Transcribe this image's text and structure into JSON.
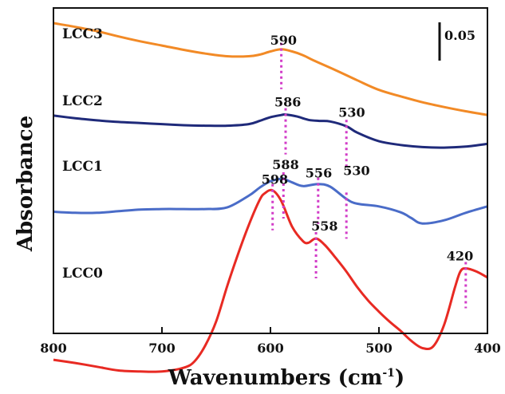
{
  "chart_data": {
    "type": "line",
    "xlabel": "Wavenumbers (cm",
    "xlabel_sup": "-1",
    "xlabel_close": ")",
    "ylabel": "Absorbance",
    "xlim": [
      800,
      400
    ],
    "x_reversed": true,
    "x_ticks": [
      800,
      700,
      600,
      500,
      400
    ],
    "scale_bar": "0.05",
    "scale_bar_value": 0.05,
    "colors": {
      "LCC3": "#f28a26",
      "LCC2": "#1f2a7a",
      "LCC1": "#4a6cc8",
      "LCC0": "#e82a23",
      "markers": "#d23cc8"
    },
    "series": [
      {
        "name": "LCC3",
        "x": [
          800,
          780,
          760,
          740,
          720,
          700,
          680,
          660,
          640,
          620,
          610,
          600,
          590,
          580,
          570,
          560,
          540,
          520,
          500,
          480,
          460,
          440,
          420,
          400
        ],
        "y": [
          0.203,
          0.196,
          0.188,
          0.178,
          0.169,
          0.161,
          0.153,
          0.146,
          0.141,
          0.141,
          0.144,
          0.15,
          0.154,
          0.15,
          0.143,
          0.133,
          0.115,
          0.096,
          0.078,
          0.066,
          0.055,
          0.046,
          0.038,
          0.031
        ]
      },
      {
        "name": "LCC2",
        "x": [
          800,
          780,
          760,
          740,
          720,
          700,
          680,
          660,
          640,
          620,
          610,
          600,
          590,
          586,
          575,
          565,
          555,
          545,
          530,
          520,
          500,
          480,
          460,
          440,
          420,
          400
        ],
        "y": [
          0.03,
          0.025,
          0.021,
          0.018,
          0.016,
          0.014,
          0.012,
          0.011,
          0.011,
          0.014,
          0.02,
          0.027,
          0.031,
          0.032,
          0.028,
          0.022,
          0.02,
          0.019,
          0.01,
          -0.002,
          -0.018,
          -0.025,
          -0.029,
          -0.03,
          -0.028,
          -0.023
        ]
      },
      {
        "name": "LCC1",
        "x": [
          800,
          780,
          760,
          740,
          720,
          700,
          680,
          660,
          640,
          620,
          610,
          600,
          590,
          588,
          580,
          570,
          556,
          545,
          530,
          520,
          500,
          480,
          470,
          460,
          440,
          420,
          400
        ],
        "y": [
          -0.15,
          -0.152,
          -0.152,
          -0.149,
          -0.146,
          -0.145,
          -0.145,
          -0.145,
          -0.142,
          -0.12,
          -0.105,
          -0.093,
          -0.088,
          -0.088,
          -0.095,
          -0.102,
          -0.098,
          -0.103,
          -0.126,
          -0.135,
          -0.14,
          -0.151,
          -0.162,
          -0.172,
          -0.166,
          -0.152,
          -0.14
        ]
      },
      {
        "name": "LCC0",
        "x": [
          800,
          780,
          760,
          740,
          720,
          700,
          680,
          670,
          660,
          650,
          640,
          630,
          620,
          610,
          605,
          598,
          590,
          580,
          570,
          565,
          558,
          550,
          540,
          530,
          520,
          510,
          500,
          490,
          480,
          470,
          460,
          450,
          440,
          430,
          425,
          420,
          410,
          400
        ],
        "y": [
          -0.427,
          -0.433,
          -0.44,
          -0.447,
          -0.449,
          -0.449,
          -0.442,
          -0.43,
          -0.4,
          -0.355,
          -0.29,
          -0.23,
          -0.175,
          -0.128,
          -0.115,
          -0.11,
          -0.13,
          -0.178,
          -0.205,
          -0.208,
          -0.2,
          -0.212,
          -0.236,
          -0.262,
          -0.291,
          -0.316,
          -0.337,
          -0.356,
          -0.373,
          -0.392,
          -0.405,
          -0.402,
          -0.362,
          -0.292,
          -0.262,
          -0.256,
          -0.262,
          -0.273
        ]
      }
    ],
    "peak_markers": [
      {
        "series": "LCC3",
        "label": "590",
        "x": 590
      },
      {
        "series": "LCC2",
        "label": "586",
        "x": 586
      },
      {
        "series": "LCC2",
        "label": "530",
        "x": 530
      },
      {
        "series": "LCC1",
        "label": "588",
        "x": 588
      },
      {
        "series": "LCC1",
        "label": "556",
        "x": 556
      },
      {
        "series": "LCC1",
        "label": "530",
        "x": 530
      },
      {
        "series": "LCC0",
        "label": "598",
        "x": 598
      },
      {
        "series": "LCC0",
        "label": "558",
        "x": 558
      },
      {
        "series": "LCC0",
        "label": "420",
        "x": 420
      }
    ]
  }
}
